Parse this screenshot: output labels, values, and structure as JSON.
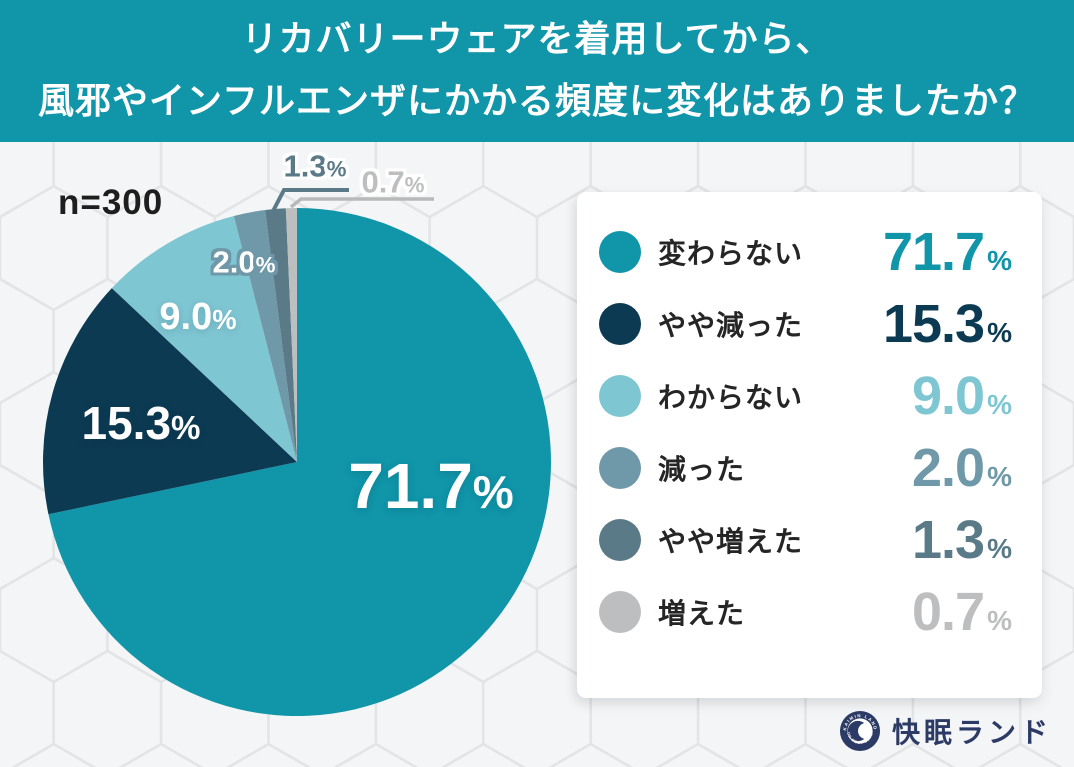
{
  "header": {
    "title_line1": "リカバリーウェアを着用してから、",
    "title_line2": "風邪やインフルエンザにかかる頻度に変化はありましたか？",
    "bg_color": "#1095a9",
    "text_color": "#ffffff"
  },
  "sample_size_label": "n=300",
  "chart_data": {
    "type": "pie",
    "title": "リカバリーウェアを着用してから、風邪やインフルエンザにかかる頻度に変化はありましたか？",
    "sample_size_label": "n=300",
    "unit": "%",
    "categories": [
      "変わらない",
      "やや減った",
      "わからない",
      "減った",
      "やや増えた",
      "増えた"
    ],
    "values": [
      71.7,
      15.3,
      9.0,
      2.0,
      1.3,
      0.7
    ],
    "values_display": [
      "71.7",
      "15.3",
      "9.0",
      "2.0",
      "1.3",
      "0.7"
    ],
    "colors": [
      "#1095a9",
      "#0c3a52",
      "#7fc6d3",
      "#6f98a8",
      "#5a7a88",
      "#bcbebf"
    ],
    "start_angle": "12-oclock",
    "direction": "clockwise",
    "legend_position": "right",
    "labels_inside": [
      "71.7%",
      "15.3%",
      "9.0%",
      "2.0%"
    ],
    "labels_outside_with_leader": [
      "1.3%",
      "0.7%"
    ]
  },
  "footer": {
    "brand": "快眠ランド",
    "brand_color": "#2c3b66",
    "logo_ring_text_top": "KAIMIN LAND",
    "logo_ring_text_bottom": "FOR BEST SLEEP"
  }
}
